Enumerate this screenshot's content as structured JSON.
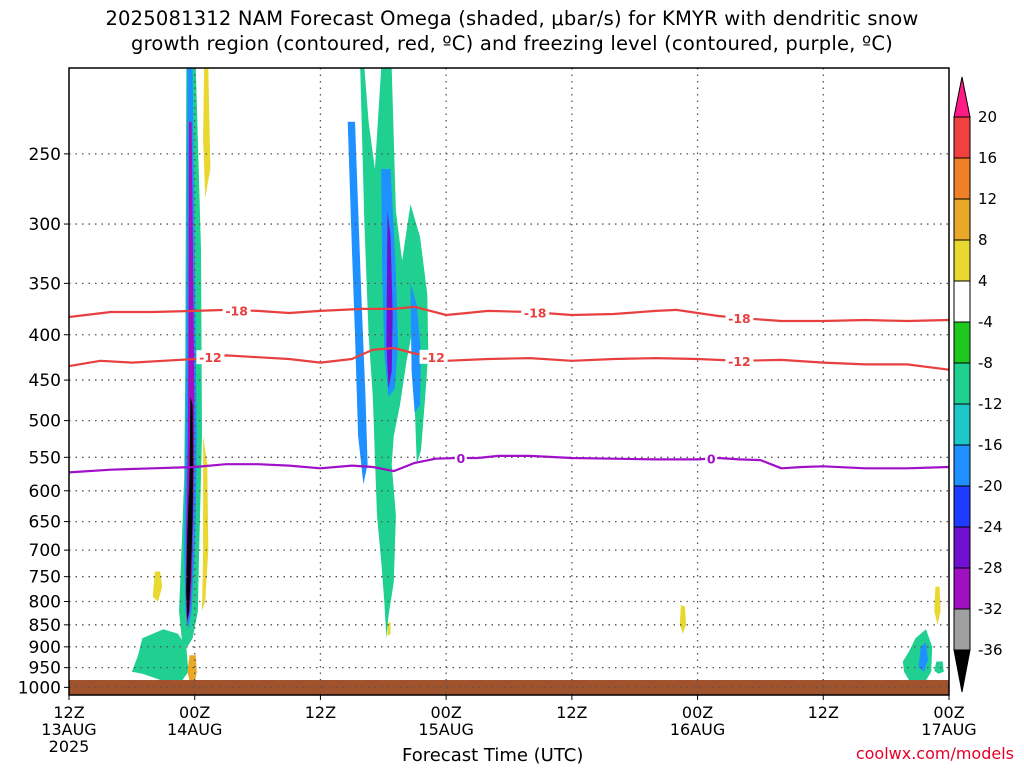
{
  "title": {
    "line1": "2025081312 NAM Forecast Omega (shaded, μbar/s) for KMYR with dendritic snow",
    "line2": "growth region (contoured, red, ºC) and freezing level (contoured, purple, ºC)"
  },
  "credit": "coolwx.com/models",
  "chart_data": {
    "type": "heatmap",
    "xlabel": "Forecast Time (UTC)",
    "ylabel": "",
    "y_scale": "log-pressure",
    "y_ticks": [
      250,
      300,
      350,
      400,
      450,
      500,
      550,
      600,
      650,
      700,
      750,
      800,
      850,
      900,
      950,
      1000
    ],
    "ylim": [
      1020,
      200
    ],
    "x_ticks": [
      {
        "hour": 0,
        "lines": [
          "12Z",
          "13AUG",
          "2025"
        ]
      },
      {
        "hour": 12,
        "lines": [
          "00Z",
          "14AUG"
        ]
      },
      {
        "hour": 24,
        "lines": [
          "12Z"
        ]
      },
      {
        "hour": 36,
        "lines": [
          "00Z",
          "15AUG"
        ]
      },
      {
        "hour": 48,
        "lines": [
          "12Z"
        ]
      },
      {
        "hour": 60,
        "lines": [
          "00Z",
          "16AUG"
        ]
      },
      {
        "hour": 72,
        "lines": [
          "12Z"
        ]
      },
      {
        "hour": 84,
        "lines": [
          "00Z",
          "17AUG"
        ]
      }
    ],
    "xlim": [
      0,
      84
    ],
    "grid": true,
    "colorbar": {
      "labels": [
        20,
        16,
        12,
        8,
        4,
        -4,
        -8,
        -12,
        -16,
        -20,
        -24,
        -28,
        -32,
        -36
      ],
      "colors": [
        "#ff1a85",
        "#f04040",
        "#f08028",
        "#e8a828",
        "#e8d830",
        "#ffffff",
        "#1fc81f",
        "#1fd090",
        "#1fc8c8",
        "#1e90ff",
        "#1e3cff",
        "#7010d0",
        "#a010c0",
        "#a0a0a0",
        "#000000"
      ]
    },
    "contours": [
      {
        "label": "-18",
        "color": "#e84040",
        "points": [
          [
            0,
            382
          ],
          [
            4,
            377
          ],
          [
            8,
            377
          ],
          [
            12,
            376
          ],
          [
            15,
            375
          ],
          [
            18,
            376
          ],
          [
            21,
            378
          ],
          [
            24,
            376
          ],
          [
            28,
            374
          ],
          [
            31,
            374
          ],
          [
            33,
            372
          ],
          [
            36,
            380
          ],
          [
            38,
            378
          ],
          [
            40,
            376
          ],
          [
            44,
            377
          ],
          [
            48,
            380
          ],
          [
            52,
            379
          ],
          [
            56,
            376
          ],
          [
            58,
            375
          ],
          [
            60,
            378
          ],
          [
            62,
            381
          ],
          [
            64,
            383
          ],
          [
            68,
            386
          ],
          [
            72,
            386
          ],
          [
            76,
            385
          ],
          [
            80,
            386
          ],
          [
            84,
            385
          ]
        ],
        "label_at": [
          16,
          44.5,
          64
        ]
      },
      {
        "label": "-12",
        "color": "#e84040",
        "points": [
          [
            0,
            434
          ],
          [
            3,
            428
          ],
          [
            6,
            430
          ],
          [
            9,
            428
          ],
          [
            12,
            426
          ],
          [
            15,
            422
          ],
          [
            18,
            424
          ],
          [
            21,
            426
          ],
          [
            24,
            430
          ],
          [
            27,
            426
          ],
          [
            29,
            416
          ],
          [
            31,
            414
          ],
          [
            33,
            420
          ],
          [
            35,
            424
          ],
          [
            36,
            428
          ],
          [
            40,
            426
          ],
          [
            44,
            425
          ],
          [
            48,
            428
          ],
          [
            52,
            426
          ],
          [
            56,
            425
          ],
          [
            60,
            426
          ],
          [
            64,
            428
          ],
          [
            68,
            427
          ],
          [
            72,
            430
          ],
          [
            76,
            432
          ],
          [
            80,
            432
          ],
          [
            84,
            438
          ]
        ],
        "label_at": [
          13.5,
          34.8,
          64
        ]
      },
      {
        "label": "0",
        "color": "#a010c8",
        "points": [
          [
            0,
            572
          ],
          [
            4,
            568
          ],
          [
            8,
            566
          ],
          [
            12,
            564
          ],
          [
            15,
            560
          ],
          [
            18,
            560
          ],
          [
            21,
            562
          ],
          [
            24,
            566
          ],
          [
            27,
            562
          ],
          [
            29,
            564
          ],
          [
            31,
            570
          ],
          [
            33,
            558
          ],
          [
            35,
            552
          ],
          [
            37,
            551
          ],
          [
            39,
            551
          ],
          [
            41,
            548
          ],
          [
            44,
            548
          ],
          [
            48,
            551
          ],
          [
            52,
            552
          ],
          [
            56,
            553
          ],
          [
            60,
            553
          ],
          [
            62,
            551
          ],
          [
            64,
            553
          ],
          [
            66,
            554
          ],
          [
            68,
            566
          ],
          [
            70,
            564
          ],
          [
            72,
            563
          ],
          [
            76,
            566
          ],
          [
            80,
            566
          ],
          [
            84,
            564
          ]
        ],
        "label_at": [
          37.4,
          61.3
        ]
      }
    ],
    "shaded_regions": [
      {
        "value": -8,
        "poly": [
          [
            11.2,
            200
          ],
          [
            12.1,
            200
          ],
          [
            12.6,
            320
          ],
          [
            12.7,
            520
          ],
          [
            12.5,
            640
          ],
          [
            12.4,
            720
          ],
          [
            12.3,
            820
          ],
          [
            11.8,
            880
          ],
          [
            11.3,
            900
          ],
          [
            10.8,
            890
          ],
          [
            10.5,
            820
          ],
          [
            10.7,
            720
          ],
          [
            11.0,
            580
          ],
          [
            11.1,
            430
          ]
        ]
      },
      {
        "value": -8,
        "poly": [
          [
            7.0,
            880
          ],
          [
            9.0,
            860
          ],
          [
            10.4,
            870
          ],
          [
            11.2,
            900
          ],
          [
            11.4,
            960
          ],
          [
            10.6,
            990
          ],
          [
            9.6,
            990
          ],
          [
            8.4,
            978
          ],
          [
            7.0,
            965
          ],
          [
            6.0,
            960
          ],
          [
            6.6,
            920
          ]
        ]
      },
      {
        "value": -16,
        "poly": [
          [
            11.3,
            200
          ],
          [
            11.8,
            200
          ],
          [
            12.0,
            320
          ],
          [
            12.2,
            520
          ],
          [
            12.1,
            640
          ],
          [
            11.9,
            740
          ],
          [
            11.7,
            820
          ],
          [
            11.4,
            860
          ],
          [
            11.1,
            820
          ],
          [
            11.0,
            700
          ],
          [
            11.1,
            560
          ],
          [
            11.2,
            400
          ]
        ]
      },
      {
        "value": -28,
        "poly": [
          [
            11.45,
            230
          ],
          [
            11.7,
            230
          ],
          [
            11.85,
            330
          ],
          [
            11.95,
            460
          ],
          [
            11.95,
            560
          ],
          [
            11.85,
            650
          ],
          [
            11.75,
            740
          ],
          [
            11.55,
            820
          ],
          [
            11.25,
            850
          ],
          [
            11.15,
            780
          ],
          [
            11.2,
            660
          ],
          [
            11.35,
            520
          ],
          [
            11.4,
            400
          ]
        ]
      },
      {
        "value": -36,
        "poly": [
          [
            11.6,
            470
          ],
          [
            11.8,
            480
          ],
          [
            11.85,
            560
          ],
          [
            11.8,
            640
          ],
          [
            11.7,
            700
          ],
          [
            11.6,
            760
          ],
          [
            11.45,
            820
          ],
          [
            11.3,
            840
          ],
          [
            11.2,
            780
          ],
          [
            11.25,
            700
          ],
          [
            11.35,
            640
          ],
          [
            11.5,
            580
          ],
          [
            11.55,
            520
          ]
        ]
      },
      {
        "value": -8,
        "poly": [
          [
            25.0,
            200
          ],
          [
            27.8,
            200
          ],
          [
            28.2,
            300
          ],
          [
            28.6,
            400
          ],
          [
            29.0,
            470
          ],
          [
            29.2,
            550
          ],
          [
            29.4,
            640
          ],
          [
            29.8,
            720
          ],
          [
            30.1,
            800
          ],
          [
            30.3,
            880
          ],
          [
            30.5,
            830
          ],
          [
            31.0,
            760
          ],
          [
            31.2,
            640
          ],
          [
            30.8,
            560
          ],
          [
            31.0,
            520
          ],
          [
            31.6,
            480
          ],
          [
            32.2,
            430
          ],
          [
            32.7,
            400
          ],
          [
            33.0,
            480
          ],
          [
            33.2,
            560
          ],
          [
            33.6,
            540
          ],
          [
            34.0,
            470
          ],
          [
            34.3,
            420
          ],
          [
            34.2,
            360
          ],
          [
            33.5,
            310
          ],
          [
            32.6,
            285
          ],
          [
            31.8,
            330
          ],
          [
            31.2,
            290
          ],
          [
            30.8,
            200
          ],
          [
            29.8,
            200
          ],
          [
            29.2,
            260
          ],
          [
            28.6,
            230
          ],
          [
            28.2,
            200
          ]
        ]
      },
      {
        "value": -16,
        "poly": [
          [
            26.6,
            230
          ],
          [
            27.3,
            230
          ],
          [
            27.9,
            360
          ],
          [
            28.3,
            470
          ],
          [
            28.5,
            560
          ],
          [
            28.1,
            590
          ],
          [
            27.6,
            520
          ],
          [
            27.3,
            400
          ],
          [
            27.0,
            320
          ]
        ]
      },
      {
        "value": -16,
        "poly": [
          [
            29.8,
            260
          ],
          [
            30.7,
            260
          ],
          [
            31.2,
            340
          ],
          [
            31.4,
            410
          ],
          [
            31.1,
            460
          ],
          [
            30.5,
            470
          ],
          [
            30.1,
            420
          ],
          [
            29.9,
            340
          ]
        ]
      },
      {
        "value": -16,
        "poly": [
          [
            32.6,
            350
          ],
          [
            33.2,
            370
          ],
          [
            33.6,
            420
          ],
          [
            33.5,
            480
          ],
          [
            33.0,
            490
          ],
          [
            32.7,
            440
          ]
        ]
      },
      {
        "value": -24,
        "poly": [
          [
            30.4,
            290
          ],
          [
            30.7,
            310
          ],
          [
            30.9,
            380
          ],
          [
            30.8,
            440
          ],
          [
            30.5,
            460
          ],
          [
            30.3,
            410
          ]
        ]
      },
      {
        "value": -8,
        "poly": [
          [
            80.8,
            880
          ],
          [
            81.8,
            860
          ],
          [
            82.4,
            900
          ],
          [
            82.3,
            960
          ],
          [
            81.4,
            1000
          ],
          [
            80.6,
            1000
          ],
          [
            79.7,
            960
          ],
          [
            79.6,
            935
          ],
          [
            80.2,
            910
          ]
        ]
      },
      {
        "value": -16,
        "poly": [
          [
            81.3,
            900
          ],
          [
            81.8,
            890
          ],
          [
            82.0,
            930
          ],
          [
            81.6,
            960
          ],
          [
            81.1,
            950
          ]
        ]
      },
      {
        "value": -8,
        "poly": [
          [
            82.8,
            935
          ],
          [
            83.4,
            935
          ],
          [
            83.5,
            960
          ],
          [
            83.0,
            965
          ],
          [
            82.6,
            958
          ]
        ]
      },
      {
        "value": 4,
        "poly": [
          [
            12.9,
            200
          ],
          [
            13.3,
            200
          ],
          [
            13.5,
            260
          ],
          [
            13.0,
            280
          ],
          [
            12.8,
            240
          ]
        ]
      },
      {
        "value": 4,
        "poly": [
          [
            12.8,
            520
          ],
          [
            13.2,
            560
          ],
          [
            13.3,
            700
          ],
          [
            13.0,
            800
          ],
          [
            12.7,
            820
          ],
          [
            12.8,
            700
          ]
        ]
      },
      {
        "value": 4,
        "poly": [
          [
            8.2,
            740
          ],
          [
            8.7,
            740
          ],
          [
            8.9,
            770
          ],
          [
            8.5,
            800
          ],
          [
            8.0,
            790
          ]
        ]
      },
      {
        "value": 8,
        "poly": [
          [
            11.5,
            920
          ],
          [
            12.1,
            920
          ],
          [
            12.2,
            960
          ],
          [
            12.0,
            990
          ],
          [
            11.6,
            995
          ],
          [
            11.3,
            960
          ]
        ]
      },
      {
        "value": 4,
        "poly": [
          [
            30.4,
            845
          ],
          [
            30.7,
            845
          ],
          [
            30.7,
            870
          ],
          [
            30.4,
            875
          ]
        ]
      },
      {
        "value": 4,
        "poly": [
          [
            58.4,
            808
          ],
          [
            58.8,
            810
          ],
          [
            58.9,
            850
          ],
          [
            58.6,
            870
          ],
          [
            58.3,
            850
          ]
        ]
      },
      {
        "value": 4,
        "poly": [
          [
            82.7,
            770
          ],
          [
            83.1,
            770
          ],
          [
            83.2,
            820
          ],
          [
            82.9,
            850
          ],
          [
            82.6,
            820
          ]
        ]
      }
    ]
  }
}
